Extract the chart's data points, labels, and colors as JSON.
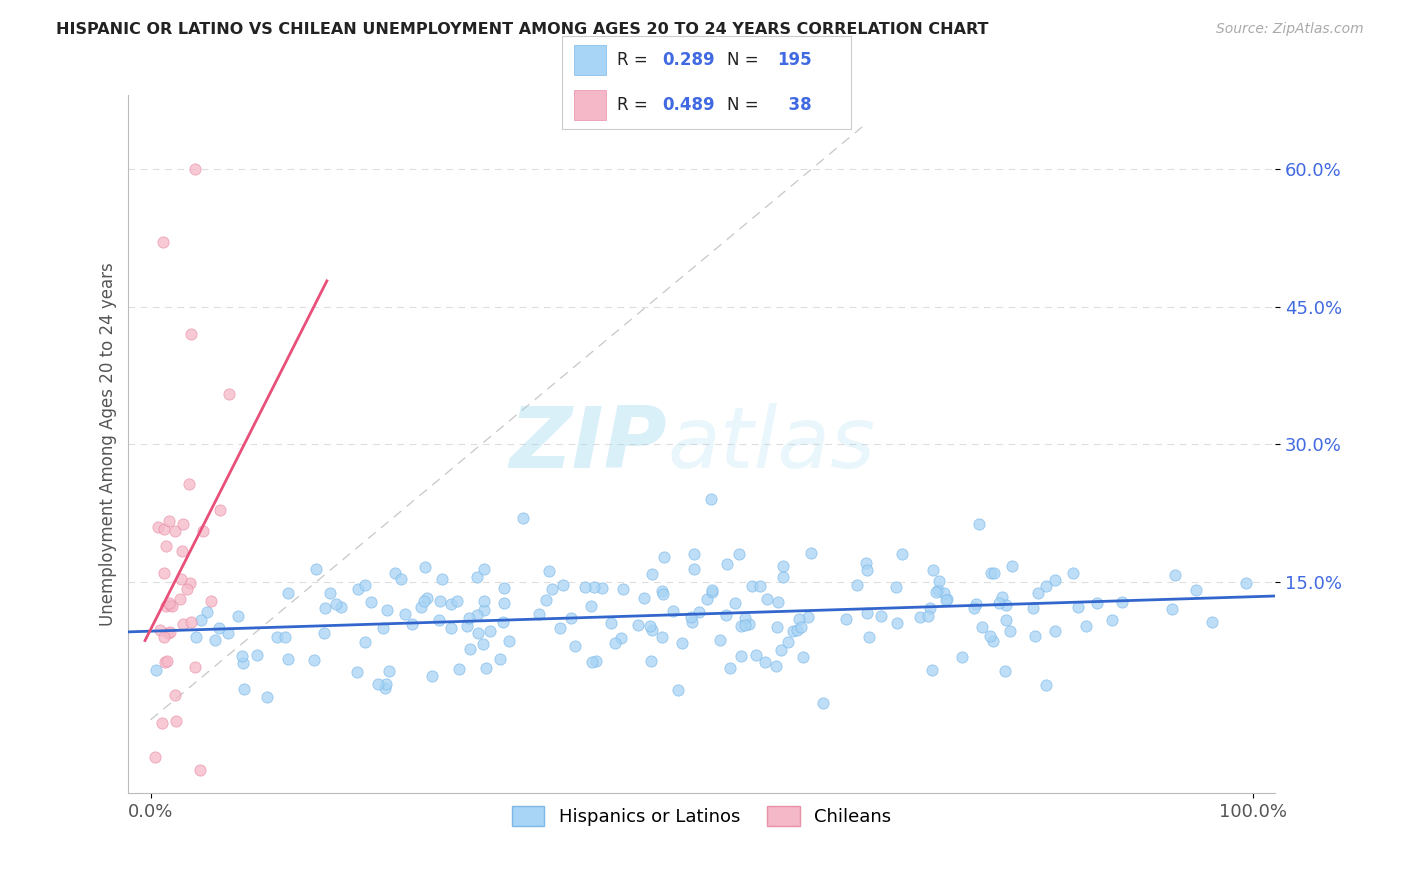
{
  "title": "HISPANIC OR LATINO VS CHILEAN UNEMPLOYMENT AMONG AGES 20 TO 24 YEARS CORRELATION CHART",
  "source": "Source: ZipAtlas.com",
  "ylabel": "Unemployment Among Ages 20 to 24 years",
  "xlim": [
    -0.02,
    1.02
  ],
  "ylim": [
    -0.08,
    0.68
  ],
  "yticks": [
    0.15,
    0.3,
    0.45,
    0.6
  ],
  "ytick_labels": [
    "15.0%",
    "30.0%",
    "45.0%",
    "60.0%"
  ],
  "blue_R": 0.289,
  "blue_N": 195,
  "pink_R": 0.489,
  "pink_N": 38,
  "blue_color": "#A8D4F5",
  "pink_color": "#F5B8C8",
  "blue_edge_color": "#7BB8E8",
  "pink_edge_color": "#E890A8",
  "blue_line_color": "#3366CC",
  "pink_line_color": "#E8507A",
  "gray_dash_color": "#CCCCCC",
  "legend_label_blue": "Hispanics or Latinos",
  "legend_label_pink": "Chileans",
  "watermark_zip": "ZIP",
  "watermark_atlas": "atlas",
  "background_color": "#FFFFFF",
  "grid_color": "#DDDDDD",
  "title_color": "#222222",
  "source_color": "#AAAAAA",
  "ylabel_color": "#555555",
  "ytick_color": "#4169E1",
  "xtick_color": "#555555"
}
